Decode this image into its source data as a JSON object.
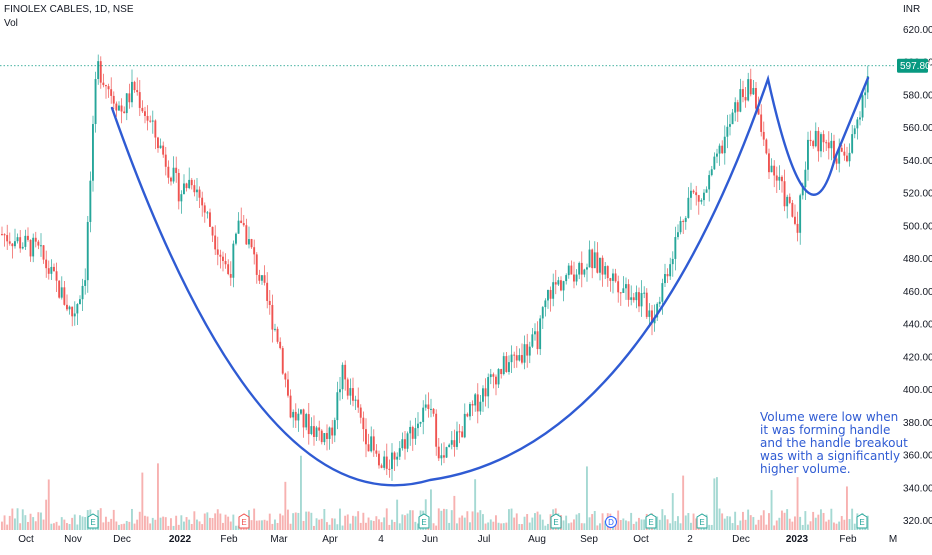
{
  "header": {
    "symbol_line": "FINOLEX CABLES, 1D, NSE",
    "volume_label": "Vol"
  },
  "currency": "INR",
  "last_price": "597.80",
  "annotation": [
    "Volume were low when",
    "it was forming handle",
    "and the handle breakout",
    "was with a significantly",
    "higher volume."
  ],
  "colors": {
    "up": "#26a69a",
    "down": "#ef5350",
    "curve": "#2f5bd3",
    "price_tag": "#089981",
    "volume_up": "#a5d9d3",
    "volume_down": "#f7b1b0"
  },
  "chart_data": {
    "type": "candlestick",
    "title": "FINOLEX CABLES, 1D, NSE",
    "ylim": [
      310,
      630
    ],
    "y_ticks": [
      320,
      340,
      360,
      380,
      400,
      420,
      440,
      460,
      480,
      500,
      520,
      540,
      560,
      580,
      600,
      620
    ],
    "x_ticks": [
      "Oct",
      "Nov",
      "Dec",
      "2022",
      "Feb",
      "Mar",
      "Apr",
      "4",
      "Jun",
      "Jul",
      "Aug",
      "Sep",
      "Oct",
      "2",
      "Dec",
      "2023",
      "Feb",
      "M"
    ],
    "price_path": [
      [
        "Oct",
        495
      ],
      [
        "Oct",
        485
      ],
      [
        "Nov",
        445
      ],
      [
        "Nov",
        470
      ],
      [
        "Nov",
        598
      ],
      [
        "Dec",
        570
      ],
      [
        "Dec",
        585
      ],
      [
        "2022",
        520
      ],
      [
        "2022",
        530
      ],
      [
        "Feb",
        470
      ],
      [
        "Feb",
        505
      ],
      [
        "Mar",
        430
      ],
      [
        "Mar",
        385
      ],
      [
        "Apr",
        370
      ],
      [
        "Apr",
        410
      ],
      [
        "4",
        350
      ],
      [
        "Jun",
        390
      ],
      [
        "Jun",
        355
      ],
      [
        "Jul",
        400
      ],
      [
        "Jul",
        410
      ],
      [
        "Aug",
        430
      ],
      [
        "Aug",
        460
      ],
      [
        "Sep",
        480
      ],
      [
        "Oct",
        455
      ],
      [
        "Oct",
        445
      ],
      [
        "2",
        520
      ],
      [
        "2",
        515
      ],
      [
        "Dec",
        580
      ],
      [
        "Dec",
        585
      ],
      [
        "Dec",
        545
      ],
      [
        "2023",
        500
      ],
      [
        "2023",
        555
      ],
      [
        "Feb",
        540
      ],
      [
        "Feb",
        600
      ]
    ],
    "overlay": "cup and handle pattern drawn as a curve",
    "series": [
      {
        "name": "Vol",
        "type": "volume"
      }
    ],
    "events": [
      {
        "x": "Nov",
        "label": "E"
      },
      {
        "x": "Feb",
        "label": "E"
      },
      {
        "x": "Jun",
        "label": "E"
      },
      {
        "x": "Aug",
        "label": "E"
      },
      {
        "x": "Sep",
        "label": "D"
      },
      {
        "x": "Oct",
        "label": "E"
      },
      {
        "x": "Dec",
        "label": "E"
      },
      {
        "x": "Feb",
        "label": "E"
      }
    ],
    "last_value": 597.8,
    "grid": false,
    "legend": "top-left"
  }
}
